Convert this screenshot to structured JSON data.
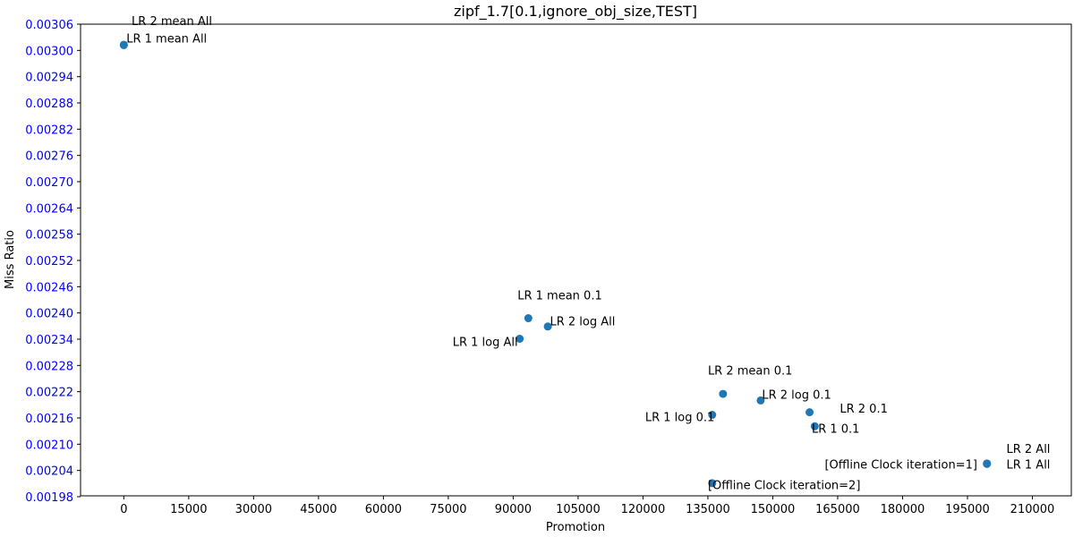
{
  "chart_data": {
    "type": "scatter",
    "title": "zipf_1.7[0.1,ignore_obj_size,TEST]",
    "xlabel": "Promotion",
    "ylabel": "Miss Ratio",
    "xlim": [
      -10000,
      219000
    ],
    "ylim": [
      0.001982,
      0.00306
    ],
    "xticks": [
      "0",
      "15000",
      "30000",
      "45000",
      "60000",
      "75000",
      "90000",
      "105000",
      "120000",
      "135000",
      "150000",
      "165000",
      "180000",
      "195000",
      "210000"
    ],
    "yticks": [
      "0.00198",
      "0.00204",
      "0.00210",
      "0.00216",
      "0.00222",
      "0.00228",
      "0.00234",
      "0.00240",
      "0.00246",
      "0.00252",
      "0.00258",
      "0.00264",
      "0.00270",
      "0.00276",
      "0.00282",
      "0.00288",
      "0.00294",
      "0.00300",
      "0.00306"
    ],
    "grid": false,
    "colors": {
      "point": "#1f77b4",
      "ytick": "#0000ff",
      "axis": "#000000"
    },
    "points": [
      {
        "x": 0,
        "y": 0.003013
      },
      {
        "x": 0,
        "y": 0.003012
      },
      {
        "x": 93500,
        "y": 0.002388
      },
      {
        "x": 98000,
        "y": 0.002369
      },
      {
        "x": 91500,
        "y": 0.002341
      },
      {
        "x": 138500,
        "y": 0.002215
      },
      {
        "x": 147200,
        "y": 0.0022
      },
      {
        "x": 158500,
        "y": 0.002173
      },
      {
        "x": 136000,
        "y": 0.002167
      },
      {
        "x": 159700,
        "y": 0.002141
      },
      {
        "x": 199500,
        "y": 0.002056
      },
      {
        "x": 199500,
        "y": 0.002055
      },
      {
        "x": 136000,
        "y": 0.002011
      }
    ],
    "annotations": [
      {
        "text": "LR 2 mean All",
        "x": 1800,
        "y": 0.003058
      },
      {
        "text": "LR 1 mean All",
        "x": 600,
        "y": 0.003018
      },
      {
        "text": "LR 1 mean 0.1",
        "x": 91000,
        "y": 0.002431
      },
      {
        "text": "LR 2 log All",
        "x": 98500,
        "y": 0.002372
      },
      {
        "text": "LR 1 log All",
        "x": 76000,
        "y": 0.002325
      },
      {
        "text": "LR 2 mean 0.1",
        "x": 135000,
        "y": 0.002259
      },
      {
        "text": "LR 2 log 0.1",
        "x": 147500,
        "y": 0.002204
      },
      {
        "text": "LR 2 0.1",
        "x": 165500,
        "y": 0.002172
      },
      {
        "text": "LR 1 log 0.1",
        "x": 120500,
        "y": 0.002153
      },
      {
        "text": "LR 1 0.1",
        "x": 159000,
        "y": 0.002126
      },
      {
        "text": "LR 2 All",
        "x": 204000,
        "y": 0.00208
      },
      {
        "text": "[Offline Clock iteration=1]",
        "x": 162000,
        "y": 0.002044
      },
      {
        "text": "LR 1 All",
        "x": 204000,
        "y": 0.002044
      },
      {
        "text": "[Offline Clock iteration=2]",
        "x": 135000,
        "y": 0.001997
      }
    ]
  }
}
